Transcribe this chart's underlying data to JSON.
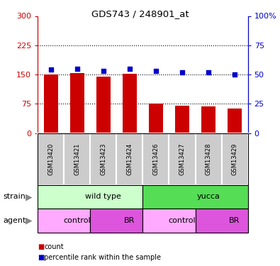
{
  "title": "GDS743 / 248901_at",
  "samples": [
    "GSM13420",
    "GSM13421",
    "GSM13423",
    "GSM13424",
    "GSM13426",
    "GSM13427",
    "GSM13428",
    "GSM13429"
  ],
  "counts": [
    150,
    153,
    145,
    151,
    75,
    70,
    69,
    62
  ],
  "percentile_ranks": [
    54,
    55,
    53,
    55,
    53,
    52,
    52,
    50
  ],
  "ylim_left": [
    0,
    300
  ],
  "ylim_right": [
    0,
    100
  ],
  "yticks_left": [
    0,
    75,
    150,
    225,
    300
  ],
  "yticks_right": [
    0,
    25,
    50,
    75,
    100
  ],
  "ytick_labels_left": [
    "0",
    "75",
    "150",
    "225",
    "300"
  ],
  "ytick_labels_right": [
    "0",
    "25",
    "50",
    "75",
    "100%"
  ],
  "bar_color": "#cc0000",
  "dot_color": "#0000cc",
  "strain_groups": [
    {
      "label": "wild type",
      "start": 0,
      "end": 4,
      "color": "#ccffcc"
    },
    {
      "label": "yucca",
      "start": 4,
      "end": 8,
      "color": "#55dd55"
    }
  ],
  "agent_groups": [
    {
      "label": "control",
      "start": 0,
      "end": 2,
      "color": "#ffaaff"
    },
    {
      "label": "BR",
      "start": 2,
      "end": 4,
      "color": "#dd55dd"
    },
    {
      "label": "control",
      "start": 4,
      "end": 6,
      "color": "#ffaaff"
    },
    {
      "label": "BR",
      "start": 6,
      "end": 8,
      "color": "#dd55dd"
    }
  ],
  "tick_bg_color": "#cccccc",
  "left_axis_color": "#cc0000",
  "right_axis_color": "#0000cc",
  "legend_items": [
    {
      "label": "count",
      "color": "#cc0000"
    },
    {
      "label": "percentile rank within the sample",
      "color": "#0000cc"
    }
  ]
}
